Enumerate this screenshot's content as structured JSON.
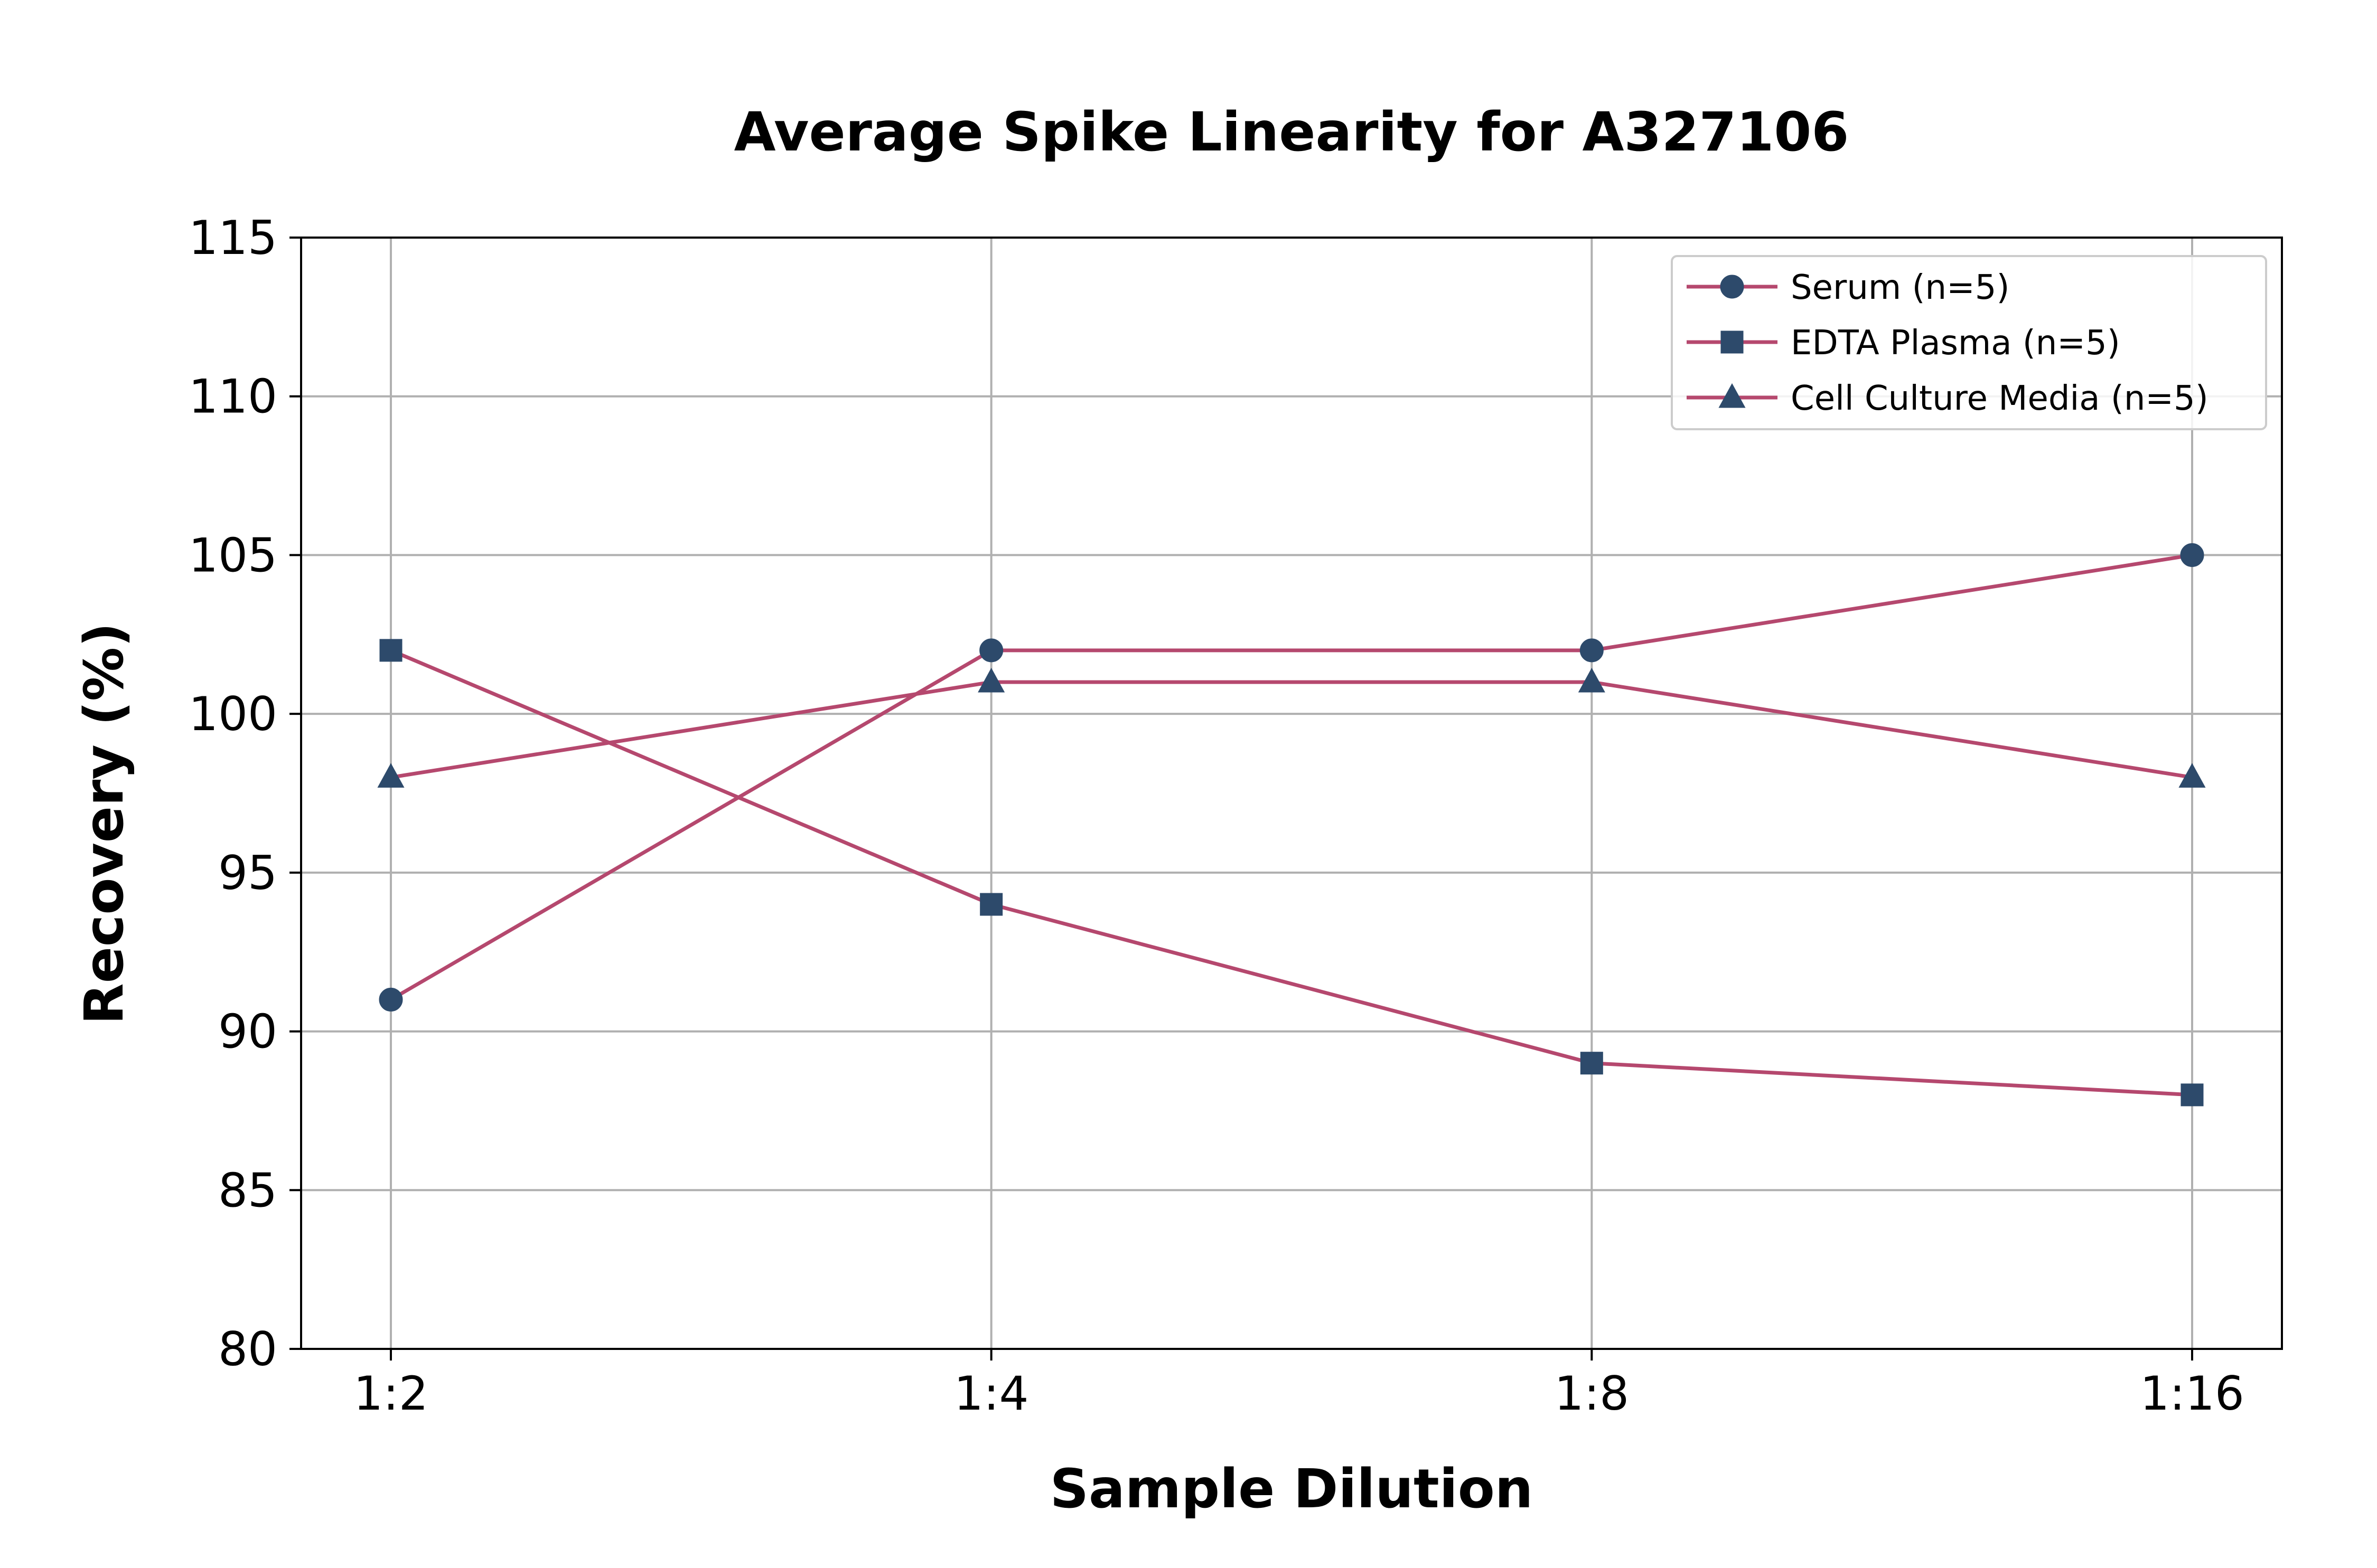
{
  "colors": {
    "line": "#b5486e",
    "marker": "#2d4a6b",
    "grid": "#b0b0b0",
    "axis": "#000000",
    "legend_border": "#cccccc"
  },
  "chart_data": {
    "type": "line",
    "title": "Average Spike Linearity for A327106",
    "xlabel": "Sample Dilution",
    "ylabel": "Recovery (%)",
    "categories": [
      "1:2",
      "1:4",
      "1:8",
      "1:16"
    ],
    "ylim": [
      80,
      115
    ],
    "yticks": [
      80,
      85,
      90,
      95,
      100,
      105,
      110,
      115
    ],
    "grid": true,
    "legend_position": "top-right",
    "series": [
      {
        "name": "Serum (n=5)",
        "marker": "circle",
        "values": [
          91,
          102,
          102,
          105
        ]
      },
      {
        "name": "EDTA Plasma (n=5)",
        "marker": "square",
        "values": [
          102,
          94,
          89,
          88
        ]
      },
      {
        "name": "Cell Culture Media (n=5)",
        "marker": "triangle",
        "values": [
          98,
          101,
          101,
          98
        ]
      }
    ]
  }
}
